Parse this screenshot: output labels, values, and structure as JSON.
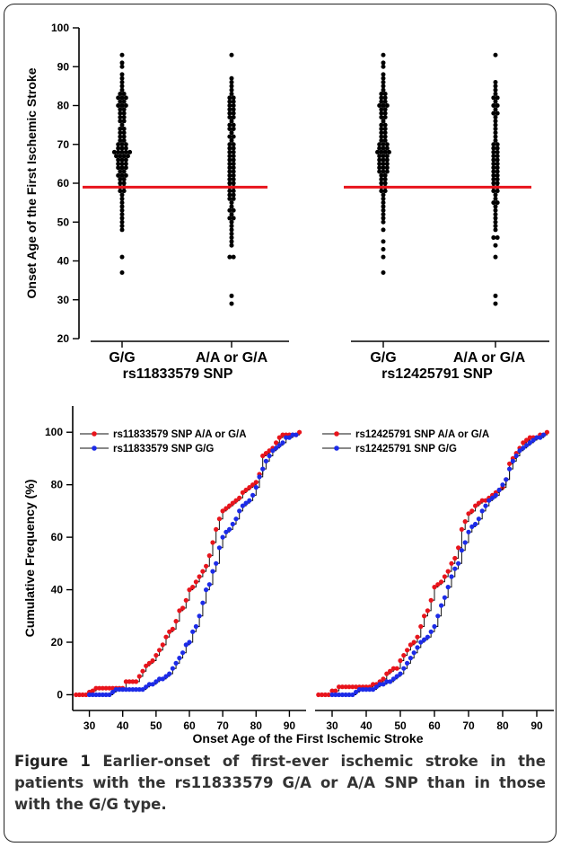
{
  "figure": {
    "label": "Figure 1",
    "caption": "Earlier-onset of first-ever ischemic stroke in the patients with the rs11833579 G/A or A/A SNP than in those with the G/G type."
  },
  "chart_data": [
    {
      "type": "scatter",
      "subtype": "dot-plot",
      "ylabel": "Onset Age of the First Ischemic Stroke",
      "ylim": [
        20,
        100
      ],
      "yticks": [
        20,
        30,
        40,
        50,
        60,
        70,
        80,
        90,
        100
      ],
      "panels": [
        {
          "snp": "rs11833579 SNP",
          "categories": [
            "G/G",
            "A/A or G/A"
          ],
          "reference_line": 59,
          "reference_color": "#e8141c",
          "series": [
            {
              "name": "G/G",
              "values": [
                37,
                41,
                48,
                49,
                50,
                51,
                52,
                53,
                54,
                55,
                56,
                57,
                58,
                58,
                59,
                59,
                60,
                60,
                61,
                61,
                62,
                62,
                62,
                63,
                63,
                64,
                64,
                64,
                65,
                65,
                65,
                66,
                66,
                66,
                67,
                67,
                67,
                67,
                68,
                68,
                68,
                68,
                68,
                69,
                69,
                69,
                70,
                70,
                70,
                71,
                71,
                72,
                72,
                73,
                73,
                74,
                74,
                75,
                76,
                76,
                77,
                77,
                78,
                78,
                79,
                79,
                80,
                80,
                80,
                81,
                81,
                82,
                82,
                82,
                83,
                83,
                84,
                85,
                86,
                87,
                88,
                90,
                91,
                93
              ]
            },
            {
              "name": "A/A or G/A",
              "values": [
                29,
                31,
                41,
                41,
                44,
                45,
                46,
                47,
                48,
                49,
                50,
                51,
                51,
                52,
                53,
                53,
                54,
                55,
                56,
                56,
                57,
                57,
                58,
                58,
                59,
                59,
                60,
                60,
                61,
                61,
                62,
                62,
                63,
                63,
                64,
                64,
                65,
                65,
                66,
                66,
                67,
                67,
                68,
                68,
                69,
                69,
                70,
                70,
                71,
                72,
                72,
                73,
                74,
                74,
                75,
                75,
                76,
                77,
                77,
                78,
                78,
                79,
                79,
                80,
                80,
                81,
                81,
                82,
                82,
                83,
                84,
                85,
                86,
                87,
                93
              ]
            }
          ]
        },
        {
          "snp": "rs12425791 SNP",
          "categories": [
            "G/G",
            "A/A or G/A"
          ],
          "reference_line": 59,
          "reference_color": "#e8141c",
          "series": [
            {
              "name": "G/G",
              "values": [
                37,
                41,
                43,
                45,
                48,
                50,
                51,
                52,
                53,
                54,
                55,
                56,
                57,
                58,
                58,
                59,
                59,
                60,
                60,
                61,
                61,
                62,
                62,
                63,
                63,
                63,
                64,
                64,
                64,
                65,
                65,
                65,
                66,
                66,
                66,
                67,
                67,
                67,
                68,
                68,
                68,
                68,
                69,
                69,
                69,
                70,
                70,
                70,
                71,
                71,
                72,
                72,
                73,
                73,
                74,
                74,
                75,
                75,
                76,
                77,
                77,
                78,
                78,
                79,
                79,
                80,
                80,
                80,
                81,
                81,
                82,
                82,
                83,
                83,
                84,
                85,
                86,
                87,
                88,
                90,
                91,
                93
              ]
            },
            {
              "name": "A/A or G/A",
              "values": [
                29,
                31,
                41,
                44,
                46,
                46,
                48,
                49,
                50,
                51,
                52,
                53,
                54,
                55,
                55,
                56,
                57,
                58,
                58,
                59,
                59,
                60,
                60,
                61,
                61,
                62,
                62,
                63,
                63,
                64,
                64,
                65,
                65,
                66,
                66,
                67,
                67,
                68,
                68,
                69,
                69,
                70,
                70,
                71,
                72,
                73,
                74,
                75,
                76,
                77,
                78,
                78,
                79,
                80,
                80,
                81,
                82,
                82,
                83,
                84,
                85,
                86,
                93
              ]
            }
          ]
        }
      ]
    },
    {
      "type": "line",
      "subtype": "cumulative-frequency",
      "xlabel": "Onset Age of the First Ischemic Stroke",
      "ylabel": "Cumulative Frequency (%)",
      "xlim": [
        25,
        95
      ],
      "ylim": [
        -6,
        110
      ],
      "xticks": [
        30,
        40,
        50,
        60,
        70,
        80,
        90
      ],
      "yticks": [
        0,
        20,
        40,
        60,
        80,
        100
      ],
      "legend_position": "top-left",
      "panels": [
        {
          "series": [
            {
              "name": "rs11833579 SNP A/A or G/A",
              "color": "#e8141c",
              "x": [
                26,
                27,
                28,
                29,
                30,
                31,
                32,
                33,
                34,
                35,
                36,
                37,
                38,
                39,
                40,
                41,
                42,
                43,
                44,
                45,
                46,
                47,
                48,
                49,
                50,
                51,
                52,
                53,
                54,
                55,
                56,
                57,
                58,
                59,
                60,
                61,
                62,
                63,
                64,
                65,
                66,
                67,
                68,
                69,
                70,
                71,
                72,
                73,
                74,
                75,
                76,
                77,
                78,
                79,
                80,
                81,
                82,
                83,
                84,
                85,
                86,
                87,
                88,
                89,
                90,
                91,
                92,
                93
              ],
              "y": [
                0,
                0,
                0,
                0,
                1,
                1.5,
                2.5,
                2.5,
                2.5,
                2.5,
                2.5,
                2.5,
                2.5,
                2.5,
                2.5,
                5,
                5,
                5,
                5,
                7,
                9,
                11,
                12,
                13,
                15,
                17,
                19,
                22,
                24,
                25,
                28,
                32,
                33,
                36,
                40,
                41,
                43,
                45,
                47,
                49,
                53,
                58,
                63,
                67,
                70,
                71,
                72,
                73,
                74,
                75,
                77,
                78,
                79,
                80,
                81,
                84,
                91,
                92,
                93,
                94,
                96,
                98,
                99,
                99,
                99,
                99,
                99,
                100
              ]
            },
            {
              "name": "rs11833579 SNP G/G",
              "color": "#1c2be8",
              "x": [
                30,
                31,
                32,
                33,
                34,
                35,
                36,
                37,
                38,
                39,
                40,
                41,
                42,
                43,
                44,
                45,
                46,
                47,
                48,
                49,
                50,
                51,
                52,
                53,
                54,
                55,
                56,
                57,
                58,
                59,
                60,
                61,
                62,
                63,
                64,
                65,
                66,
                67,
                68,
                69,
                70,
                71,
                72,
                73,
                74,
                75,
                76,
                77,
                78,
                79,
                80,
                81,
                82,
                83,
                84,
                85,
                86,
                87,
                88,
                89,
                90,
                91,
                92
              ],
              "y": [
                0,
                0,
                0,
                0,
                0,
                0,
                0,
                1,
                2,
                2,
                2,
                2,
                2,
                2,
                2,
                2,
                2,
                3,
                4,
                4,
                5,
                6,
                6,
                7,
                8,
                10,
                12,
                14,
                16,
                19,
                20,
                24,
                26,
                30,
                35,
                40,
                42,
                47,
                50,
                56,
                60,
                62,
                63,
                65,
                67,
                70,
                72,
                73,
                74,
                76,
                79,
                83,
                86,
                89,
                91,
                93,
                94,
                95,
                96,
                98,
                98,
                99,
                99
              ]
            }
          ]
        },
        {
          "series": [
            {
              "name": "rs12425791 SNP A/A or G/A",
              "color": "#e8141c",
              "x": [
                26,
                27,
                28,
                29,
                30,
                31,
                32,
                33,
                34,
                35,
                36,
                37,
                38,
                39,
                40,
                41,
                42,
                43,
                44,
                45,
                46,
                47,
                48,
                49,
                50,
                51,
                52,
                53,
                54,
                55,
                56,
                57,
                58,
                59,
                60,
                61,
                62,
                63,
                64,
                65,
                66,
                67,
                68,
                69,
                70,
                71,
                72,
                73,
                74,
                75,
                76,
                77,
                78,
                79,
                80,
                81,
                82,
                83,
                84,
                85,
                86,
                87,
                88,
                89,
                90,
                91,
                92,
                93
              ],
              "y": [
                0,
                0,
                0,
                0,
                1.5,
                1.5,
                3,
                3,
                3,
                3,
                3,
                3,
                3,
                3,
                3,
                3,
                4,
                4,
                5,
                6,
                8,
                9,
                10,
                10,
                13,
                15,
                17,
                19,
                20,
                22,
                26,
                30,
                32,
                36,
                41,
                42,
                43,
                45,
                47,
                50,
                52,
                56,
                63,
                66,
                69,
                70,
                72,
                73,
                74,
                74,
                75,
                76,
                77,
                78,
                79,
                82,
                88,
                90,
                92,
                94,
                96,
                97,
                98,
                98,
                98,
                99,
                99,
                100
              ]
            },
            {
              "name": "rs12425791 SNP G/G",
              "color": "#1c2be8",
              "x": [
                30,
                31,
                32,
                33,
                34,
                35,
                36,
                37,
                38,
                39,
                40,
                41,
                42,
                43,
                44,
                45,
                46,
                47,
                48,
                49,
                50,
                51,
                52,
                53,
                54,
                55,
                56,
                57,
                58,
                59,
                60,
                61,
                62,
                63,
                64,
                65,
                66,
                67,
                68,
                69,
                70,
                71,
                72,
                73,
                74,
                75,
                76,
                77,
                78,
                79,
                80,
                81,
                82,
                83,
                84,
                85,
                86,
                87,
                88,
                89,
                90,
                91,
                92
              ],
              "y": [
                0,
                0,
                0,
                0,
                0,
                0,
                0,
                1,
                2,
                2,
                2,
                2,
                2,
                3,
                4,
                4,
                5,
                5,
                6,
                7,
                8,
                10,
                12,
                14,
                16,
                18,
                20,
                21,
                22,
                24,
                26,
                30,
                34,
                37,
                41,
                45,
                48,
                50,
                55,
                58,
                62,
                64,
                65,
                67,
                70,
                72,
                74,
                75,
                76,
                78,
                80,
                82,
                86,
                89,
                91,
                93,
                94,
                95,
                96,
                97,
                98,
                98,
                99
              ]
            }
          ]
        }
      ]
    }
  ]
}
